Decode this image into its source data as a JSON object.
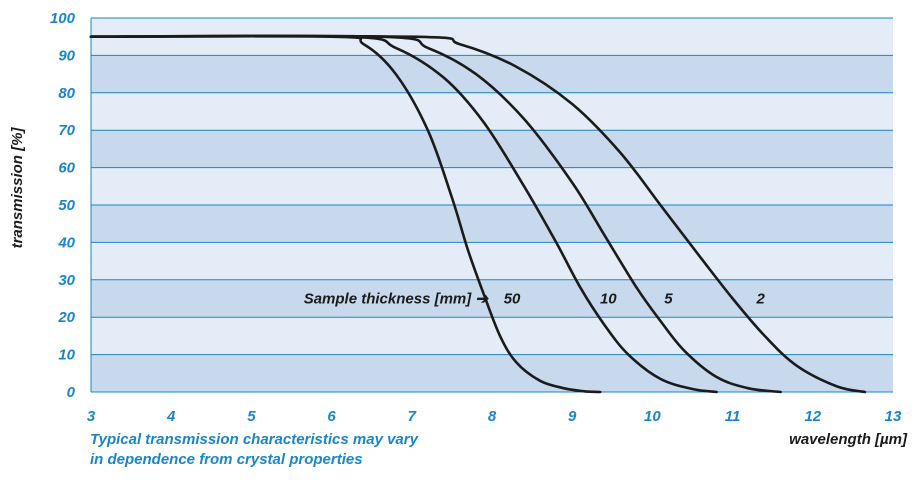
{
  "chart_data": {
    "type": "line",
    "title": "",
    "xlabel": "wavelength [µm]",
    "ylabel": "transmission [%]",
    "xlim": [
      3,
      13
    ],
    "ylim": [
      0,
      100
    ],
    "x_ticks": [
      3,
      4,
      5,
      6,
      7,
      8,
      9,
      10,
      11,
      12,
      13
    ],
    "y_ticks": [
      0,
      10,
      20,
      30,
      40,
      50,
      60,
      70,
      80,
      90,
      100
    ],
    "grid": true,
    "legend_title": "Sample thickness [mm] ➔",
    "series": [
      {
        "name": "50",
        "x": [
          3,
          6.0,
          6.4,
          6.8,
          7.2,
          7.5,
          7.7,
          7.9,
          8.1,
          8.3,
          8.6,
          8.9,
          9.15,
          9.35
        ],
        "y": [
          95,
          95,
          93,
          85,
          70,
          52,
          38,
          26,
          15,
          8,
          3,
          1,
          0.2,
          0
        ]
      },
      {
        "name": "10",
        "x": [
          3,
          6.2,
          6.8,
          7.4,
          7.9,
          8.4,
          8.8,
          9.1,
          9.4,
          9.7,
          10.1,
          10.5,
          10.8
        ],
        "y": [
          95,
          95,
          92,
          84,
          72,
          55,
          40,
          28,
          18,
          10,
          3.5,
          0.8,
          0
        ]
      },
      {
        "name": "5",
        "x": [
          3,
          6.6,
          7.2,
          7.8,
          8.4,
          9.0,
          9.4,
          9.8,
          10.1,
          10.4,
          10.8,
          11.2,
          11.6
        ],
        "y": [
          95,
          95,
          92,
          85,
          73,
          56,
          42,
          28,
          19,
          11,
          4,
          1,
          0
        ]
      },
      {
        "name": "2",
        "x": [
          3,
          7.0,
          7.6,
          8.3,
          9.0,
          9.6,
          10.1,
          10.6,
          11.0,
          11.4,
          11.8,
          12.3,
          12.65
        ],
        "y": [
          95,
          95,
          93,
          87,
          77,
          64,
          50,
          36,
          25,
          15,
          7,
          1.5,
          0
        ]
      }
    ],
    "series_label_positions": [
      {
        "name": "50",
        "x": 8.25,
        "y": 25
      },
      {
        "name": "10",
        "x": 9.45,
        "y": 25
      },
      {
        "name": "5",
        "x": 10.2,
        "y": 25
      },
      {
        "name": "2",
        "x": 11.35,
        "y": 25
      }
    ],
    "legend_anchor": {
      "x": 7.95,
      "y": 25
    },
    "band_colors": [
      "#c8d9ee",
      "#e3ecf7"
    ],
    "grid_color": "#1a86c8",
    "line_color": "#1b1b1b",
    "tick_color": "#1a86c8"
  },
  "note": {
    "line1": "Typical transmission characteristics may vary",
    "line2": "in dependence from crystal properties"
  }
}
